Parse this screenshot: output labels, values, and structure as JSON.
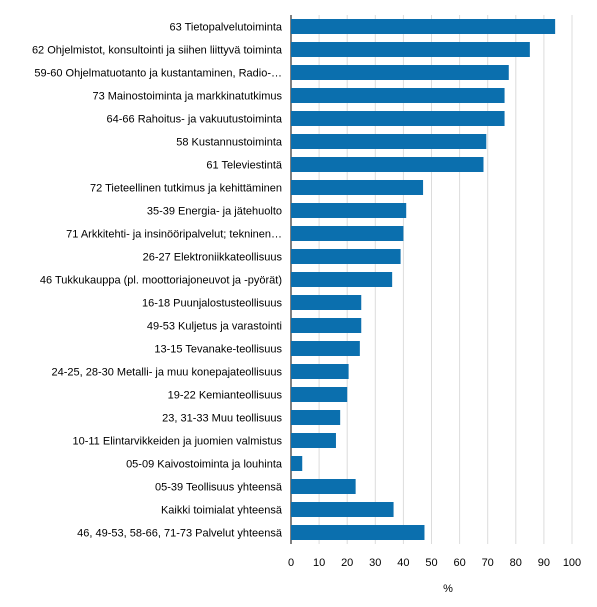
{
  "chart_data": {
    "type": "bar",
    "orientation": "horizontal",
    "categories": [
      "63 Tietopalvelutoiminta",
      "62 Ohjelmistot, konsultointi ja siihen liittyvä toiminta",
      "59-60 Ohjelmatuotanto ja kustantaminen, Radio-…",
      "73 Mainostoiminta ja markkinatutkimus",
      "64-66 Rahoitus- ja vakuutustoiminta",
      "58 Kustannustoiminta",
      "61 Televiestintä",
      "72 Tieteellinen tutkimus ja kehittäminen",
      "35-39 Energia- ja jätehuolto",
      "71 Arkkitehti- ja insinööripalvelut; tekninen…",
      "26-27 Elektroniikkateollisuus",
      "46 Tukkukauppa (pl. moottoriajoneuvot ja -pyörät)",
      "16-18 Puunjalostusteollisuus",
      "49-53 Kuljetus ja varastointi",
      "13-15 Tevanake-teollisuus",
      "24-25, 28-30 Metalli- ja muu konepajateollisuus",
      "19-22 Kemianteollisuus",
      "23, 31-33 Muu teollisuus",
      "10-11 Elintarvikkeiden ja juomien valmistus",
      "05-09 Kaivostoiminta ja louhinta",
      "05-39 Teollisuus yhteensä",
      "Kaikki toimialat yhteensä",
      "46, 49-53, 58-66, 71-73 Palvelut yhteensä"
    ],
    "values": [
      94,
      85,
      77.5,
      76,
      76,
      69.5,
      68.5,
      47,
      41,
      40,
      39,
      36,
      25,
      25,
      24.5,
      20.5,
      20,
      17.5,
      16,
      4,
      23,
      36.5,
      47.5
    ],
    "xlabel": "%",
    "ylabel": "",
    "xlim": [
      0,
      100
    ],
    "ticks": [
      0,
      10,
      20,
      30,
      40,
      50,
      60,
      70,
      80,
      90,
      100
    ],
    "grid": "vertical",
    "bar_color": "#0b6fae"
  }
}
